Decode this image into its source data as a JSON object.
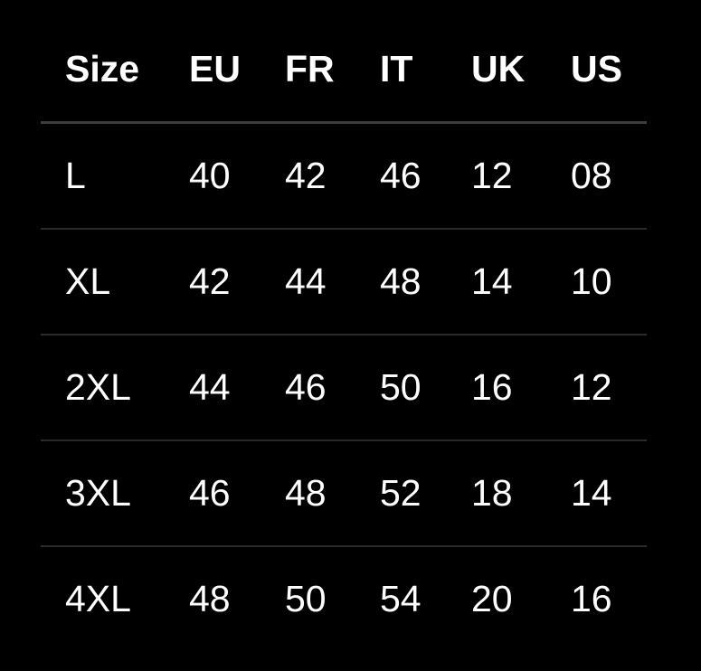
{
  "headers": [
    "Size",
    "EU",
    "FR",
    "IT",
    "UK",
    "US"
  ],
  "rows": [
    [
      "L",
      "40",
      "42",
      "46",
      "12",
      "08"
    ],
    [
      "XL",
      "42",
      "44",
      "48",
      "14",
      "10"
    ],
    [
      "2XL",
      "44",
      "46",
      "50",
      "16",
      "12"
    ],
    [
      "3XL",
      "46",
      "48",
      "52",
      "18",
      "14"
    ],
    [
      "4XL",
      "48",
      "50",
      "54",
      "20",
      "16"
    ]
  ]
}
